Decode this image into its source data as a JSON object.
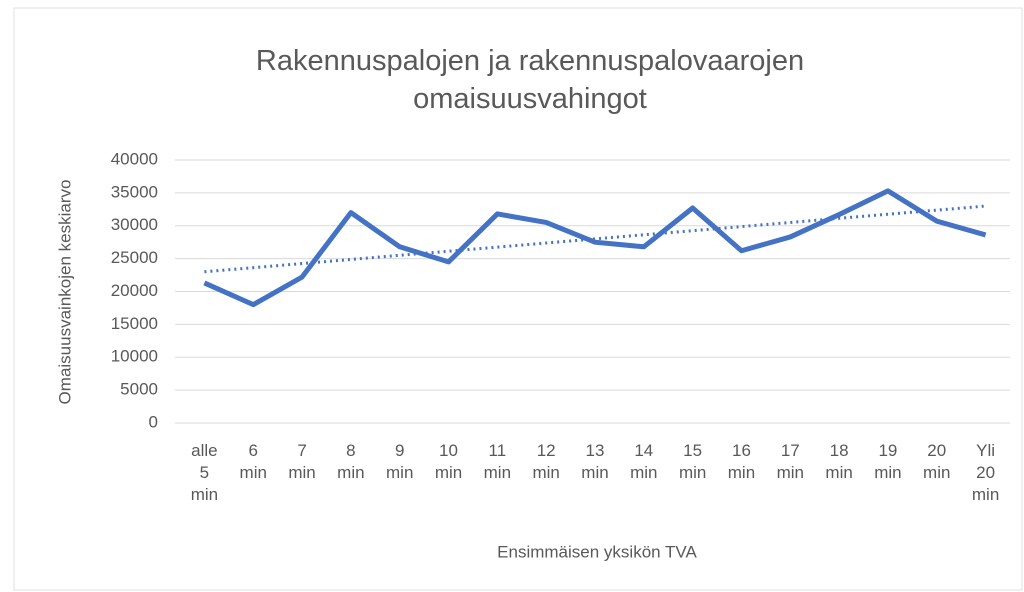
{
  "chart_data": {
    "type": "line",
    "title": "Rakennuspalojen ja rakennuspalovaarojen omaisuusvahingot",
    "x_label": "Ensimmäisen yksikön TVA",
    "y_label": "Omaisuusvainkojen keskiarvo",
    "categories": [
      "alle 5 min",
      "6 min",
      "7 min",
      "8 min",
      "9 min",
      "10 min",
      "11 min",
      "12 min",
      "13 min",
      "14 min",
      "15 min",
      "16 min",
      "17 min",
      "18 min",
      "19 min",
      "20 min",
      "Yli 20 min"
    ],
    "series": [
      {
        "color": "#4472c4",
        "values": [
          21300,
          18000,
          22200,
          32000,
          26800,
          24500,
          31800,
          30500,
          27500,
          26800,
          32700,
          26200,
          28300,
          31700,
          35300,
          30700,
          28600
        ]
      }
    ],
    "trendline": {
      "color": "#4472c4",
      "style": "dotted",
      "values": [
        23000,
        33000
      ]
    },
    "ylim": [
      0,
      40000
    ],
    "yticks": [
      0,
      5000,
      10000,
      15000,
      20000,
      25000,
      30000,
      35000,
      40000
    ],
    "grid": true
  }
}
